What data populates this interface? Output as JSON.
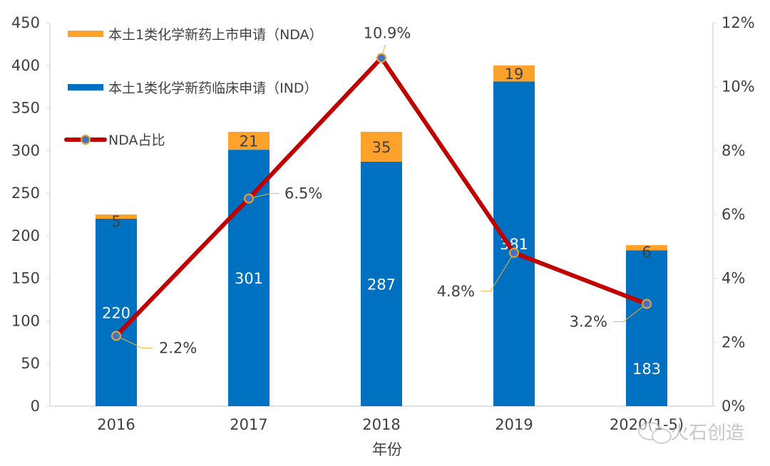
{
  "chart_data": {
    "type": "bar",
    "stacked": true,
    "categories": [
      "2016",
      "2017",
      "2018",
      "2019",
      "2020(1-5)"
    ],
    "xlabel": "年份",
    "ylabel": "",
    "ylim": [
      0,
      450
    ],
    "yticks": [
      "0",
      "50",
      "100",
      "150",
      "200",
      "250",
      "300",
      "350",
      "400",
      "450"
    ],
    "y2lim": [
      0,
      12
    ],
    "y2ticks": [
      "0%",
      "2%",
      "4%",
      "6%",
      "8%",
      "10%",
      "12%"
    ],
    "grid": false,
    "legend_position": "top-left",
    "series": [
      {
        "name": "本土1类化学新药临床申请（IND）",
        "type": "bar",
        "axis": "left",
        "color": "#0070C0",
        "values": [
          220,
          301,
          287,
          381,
          183
        ]
      },
      {
        "name": "本土1类化学新药上市申请（NDA）",
        "type": "bar",
        "axis": "left",
        "color": "#FFA22B",
        "values": [
          5,
          21,
          35,
          19,
          6
        ]
      },
      {
        "name": "NDA占比",
        "type": "line",
        "axis": "right",
        "color": "#C00000",
        "marker_fill": "#4472C4",
        "marker_edge": "#E8A530",
        "values": [
          2.2,
          6.5,
          10.9,
          4.8,
          3.2
        ],
        "labels": [
          "2.2%",
          "6.5%",
          "10.9%",
          "4.8%",
          "3.2%"
        ]
      }
    ]
  },
  "watermark": "火石创造"
}
